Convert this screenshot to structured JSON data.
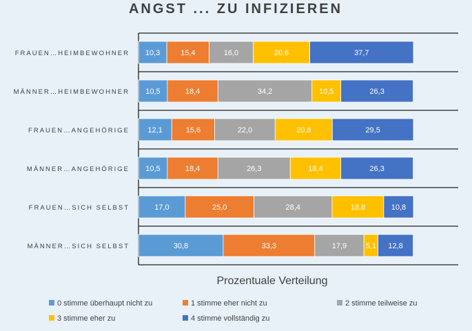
{
  "chart_data": {
    "type": "bar",
    "orientation": "horizontal",
    "stacked": true,
    "title": "ANGST ... ZU INFIZIEREN",
    "xlabel": "Prozentuale Verteilung",
    "ylabel": "",
    "xlim": [
      0,
      100
    ],
    "grid": false,
    "legend_position": "bottom",
    "categories": [
      "FRAUEN…HEIMBEWOHNER",
      "MÄNNER…HEIMBEWOHNER",
      "FRAUEN…ANGEHÖRIGE",
      "MÄNNER…ANGEHÖRIGE",
      "FRAUEN…SICH SELBST",
      "MÄNNER…SICH SELBST"
    ],
    "series": [
      {
        "name": "0 stimme überhaupt nicht zu",
        "color": "#5b9bd5",
        "labels": [
          "10,3",
          "10,5",
          "12,1",
          "10,5",
          "17,0",
          "30,8"
        ],
        "values": [
          10.3,
          10.5,
          12.1,
          10.5,
          17.0,
          30.8
        ]
      },
      {
        "name": "1 stimme eher nicht zu",
        "color": "#ed7d31",
        "labels": [
          "15,4",
          "18,4",
          "15,6",
          "18,4",
          "25,0",
          "33,3"
        ],
        "values": [
          15.4,
          18.4,
          15.6,
          18.4,
          25.0,
          33.3
        ]
      },
      {
        "name": "2 stimme teilweise zu",
        "color": "#a5a5a5",
        "labels": [
          "16,0",
          "34,2",
          "22,0",
          "26,3",
          "28,4",
          "17,9"
        ],
        "values": [
          16.0,
          34.2,
          22.0,
          26.3,
          28.4,
          17.9
        ]
      },
      {
        "name": "3 stimme eher zu",
        "color": "#ffc000",
        "labels": [
          "20,6",
          "10,5",
          "20,8",
          "18,4",
          "18,8",
          "5,1"
        ],
        "values": [
          20.6,
          10.5,
          20.8,
          18.4,
          18.8,
          5.1
        ]
      },
      {
        "name": "4 stimme vollständig zu",
        "color": "#4472c4",
        "labels": [
          "37,7",
          "26,3",
          "29,5",
          "26,3",
          "10,8",
          "12,8"
        ],
        "values": [
          37.7,
          26.3,
          29.5,
          26.3,
          10.8,
          12.8
        ]
      }
    ]
  }
}
